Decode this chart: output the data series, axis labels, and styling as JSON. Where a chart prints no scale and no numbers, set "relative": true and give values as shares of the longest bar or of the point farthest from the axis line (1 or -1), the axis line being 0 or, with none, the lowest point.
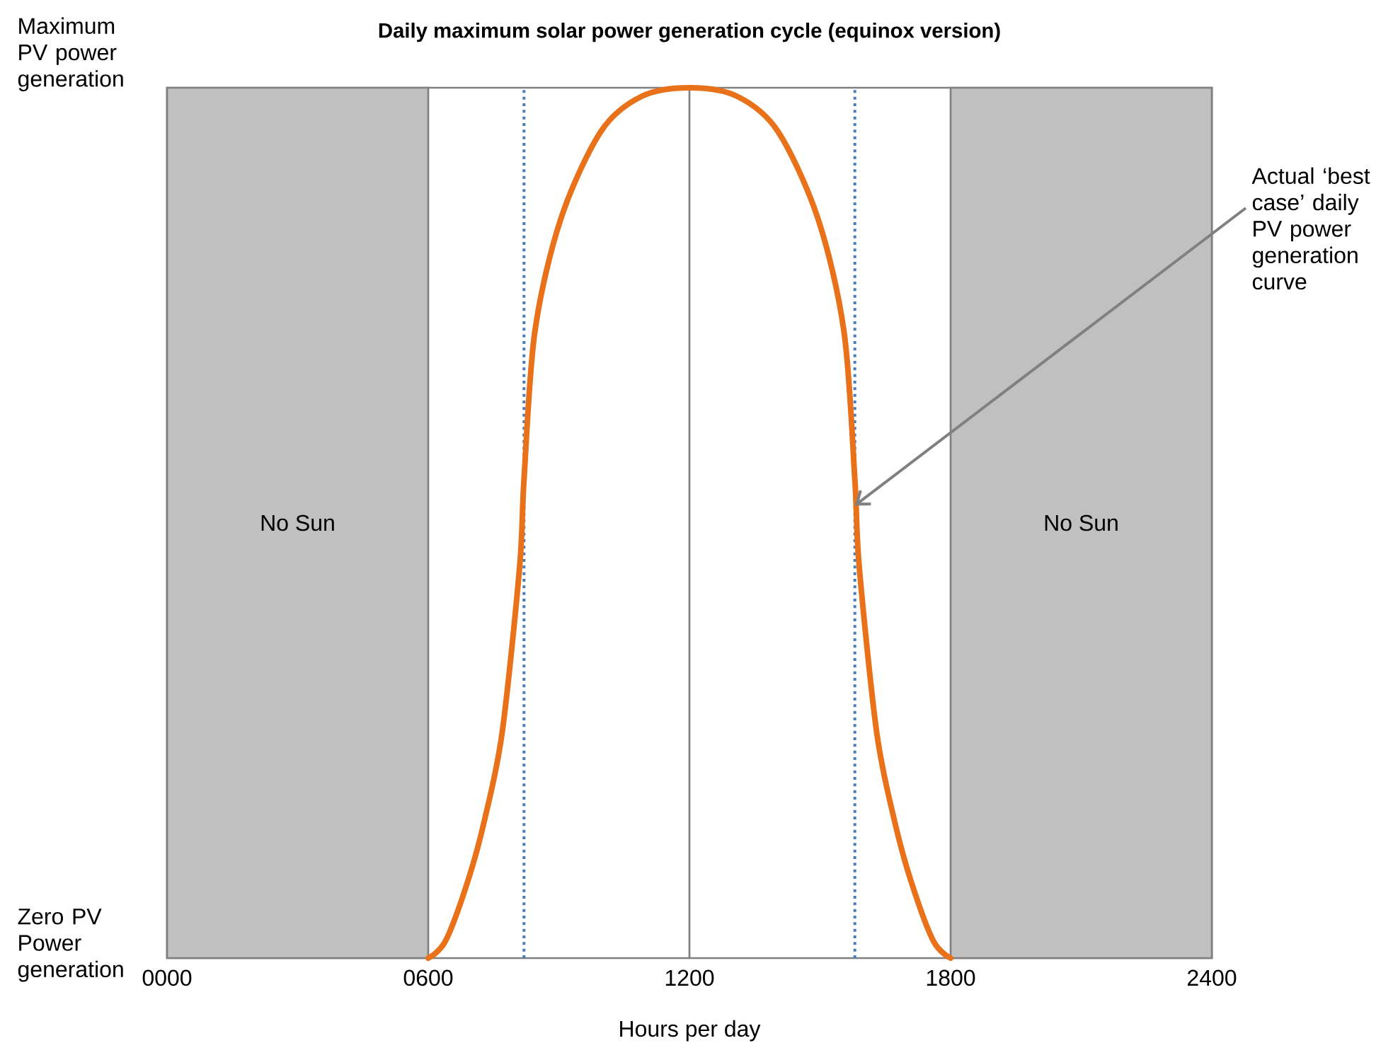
{
  "chart_data": {
    "type": "line",
    "title": "Daily maximum solar power generation cycle (equinox version)",
    "xlabel": "Hours per day",
    "relative": true,
    "x": [
      600,
      640,
      692,
      730,
      770,
      810,
      820,
      845,
      905,
      997,
      1090,
      1200,
      1310,
      1403,
      1495,
      1555,
      1580,
      1590,
      1630,
      1670,
      1708,
      1760,
      1800
    ],
    "series": [
      {
        "color": "#e8711a",
        "values": [
          0,
          0.02,
          0.09,
          0.16,
          0.26,
          0.45,
          0.55,
          0.72,
          0.85,
          0.95,
          0.99,
          1,
          0.99,
          0.95,
          0.85,
          0.72,
          0.55,
          0.45,
          0.26,
          0.16,
          0.09,
          0.02,
          0
        ]
      }
    ],
    "xlim": [
      0,
      2400
    ],
    "xticks": [
      {
        "value": 0,
        "label": "0000"
      },
      {
        "value": 600,
        "label": "0600"
      },
      1200,
      1800,
      2400
    ],
    "bands": [
      {
        "axis": "x",
        "from": 0,
        "to": 600,
        "label": "No Sun",
        "color": "#c0c0c0"
      },
      {
        "axis": "x",
        "from": 1800,
        "to": 2400,
        "label": "No Sun",
        "color": "#c0c0c0"
      }
    ],
    "ref_lines": [
      {
        "axis": "x",
        "value": 1200,
        "color": "#7f7f7f",
        "line_style": "solid"
      },
      {
        "axis": "x",
        "value": 820,
        "color": "#4a7ebb",
        "line_style": "dotted"
      },
      {
        "axis": "x",
        "value": 1580,
        "color": "#4a7ebb",
        "line_style": "dotted"
      }
    ],
    "annotations": [
      "Maximum PV power generation",
      "Zero PV Power generation",
      {
        "text": "Actual ‘best case’ daily PV power generation curve",
        "x": 1580,
        "y": 0.52
      }
    ],
    "marker": "none",
    "line_style": "solid"
  }
}
